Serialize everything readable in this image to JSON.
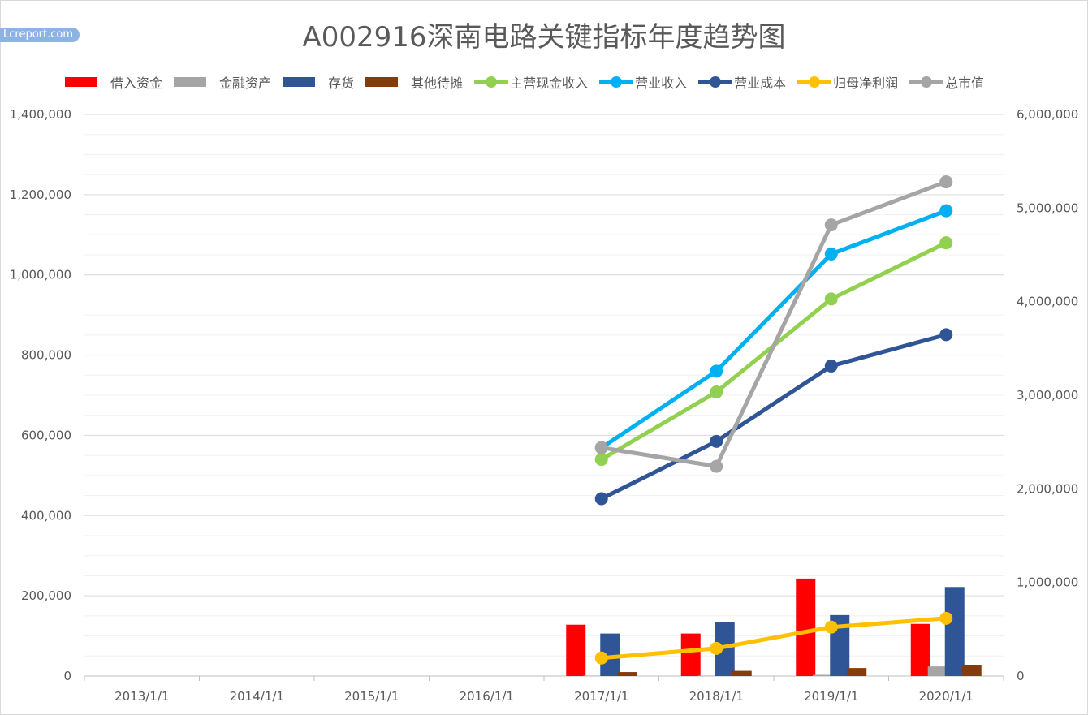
{
  "watermark": "Lcreport.com",
  "chart_data": {
    "type": "bar+line",
    "title": "A002916深南电路关键指标年度趋势图",
    "categories": [
      "2013/1/1",
      "2014/1/1",
      "2015/1/1",
      "2016/1/1",
      "2017/1/1",
      "2018/1/1",
      "2019/1/1",
      "2020/1/1"
    ],
    "y_left": {
      "min": 0,
      "max": 1400000,
      "ticks": [
        "0",
        "200,000",
        "400,000",
        "600,000",
        "800,000",
        "1,000,000",
        "1,200,000",
        "1,400,000"
      ]
    },
    "y_right": {
      "min": 0,
      "max": 6000000,
      "ticks": [
        "0",
        "1,000,000",
        "2,000,000",
        "3,000,000",
        "4,000,000",
        "5,000,000",
        "6,000,000"
      ]
    },
    "grid": true,
    "legend_position": "top",
    "bar_series": [
      {
        "name": "借入资金",
        "color": "#ff0000",
        "values": [
          null,
          null,
          null,
          null,
          128000,
          106000,
          243000,
          130000
        ]
      },
      {
        "name": "金融资产",
        "color": "#a5a5a5",
        "values": [
          null,
          null,
          null,
          null,
          1000,
          1000,
          3000,
          24000
        ]
      },
      {
        "name": "存货",
        "color": "#2f5597",
        "values": [
          null,
          null,
          null,
          null,
          106000,
          134000,
          152000,
          222000
        ]
      },
      {
        "name": "其他待摊",
        "color": "#843c0c",
        "values": [
          null,
          null,
          null,
          null,
          10000,
          13000,
          20000,
          27000
        ]
      }
    ],
    "line_series": [
      {
        "name": "主营现金收入",
        "color": "#92d050",
        "axis": "left",
        "values": [
          null,
          null,
          null,
          null,
          540000,
          708000,
          940000,
          1080000
        ]
      },
      {
        "name": "营业收入",
        "color": "#00b0f0",
        "axis": "left",
        "values": [
          null,
          null,
          null,
          null,
          569000,
          760000,
          1052000,
          1160000
        ]
      },
      {
        "name": "营业成本",
        "color": "#2f5597",
        "axis": "left",
        "values": [
          null,
          null,
          null,
          null,
          442000,
          585000,
          773000,
          851000
        ]
      },
      {
        "name": "归母净利润",
        "color": "#ffc000",
        "axis": "left",
        "values": [
          null,
          null,
          null,
          null,
          45000,
          69000,
          122000,
          144000
        ]
      },
      {
        "name": "总市值",
        "color": "#a5a5a5",
        "axis": "right",
        "values": [
          null,
          null,
          null,
          null,
          2440000,
          2240000,
          4820000,
          5280000
        ]
      }
    ]
  }
}
